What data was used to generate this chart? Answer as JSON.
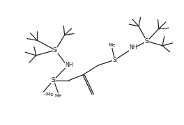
{
  "bg_color": "#ffffff",
  "line_color": "#222222",
  "line_width": 0.9,
  "font_size": 5.5,
  "fig_width": 2.64,
  "fig_height": 1.8,
  "dpi": 100,
  "xlim": [
    0,
    10
  ],
  "ylim": [
    0,
    7
  ]
}
